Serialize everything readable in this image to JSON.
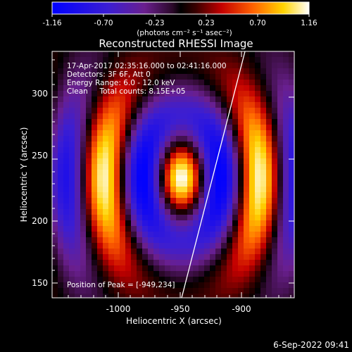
{
  "colorbar": {
    "tick_labels": [
      "-1.16",
      "-0.70",
      "-0.23",
      "0.23",
      "0.70",
      "1.16"
    ],
    "units_label": "(photons cm⁻² s⁻¹ asec⁻²)",
    "range": [
      -1.16,
      1.16
    ]
  },
  "plot": {
    "title": "Reconstructed RHESSI Image",
    "xlabel": "Heliocentric X (arcsec)",
    "ylabel": "Heliocentric Y (arcsec)",
    "x_ticks": [
      "-1000",
      "-950",
      "-900"
    ],
    "y_ticks": [
      "300",
      "250",
      "200",
      "150"
    ],
    "xlim": [
      -1050,
      -885
    ],
    "ylim": [
      138,
      337
    ]
  },
  "annotations": {
    "line1": "17-Apr-2017 02:35:16.000 to 02:41:16.000",
    "line2": "Detectors: 3F 6F, Att 0",
    "line3": "Energy Range: 6.0 - 12.0 keV",
    "line4": "Clean     Total counts: 8.15E+05",
    "peak": "Position of Peak = [-949,234]"
  },
  "footer": {
    "timestamp": "6-Sep-2022 09:41"
  },
  "colors": {
    "background": "#000000",
    "foreground": "#ffffff"
  }
}
